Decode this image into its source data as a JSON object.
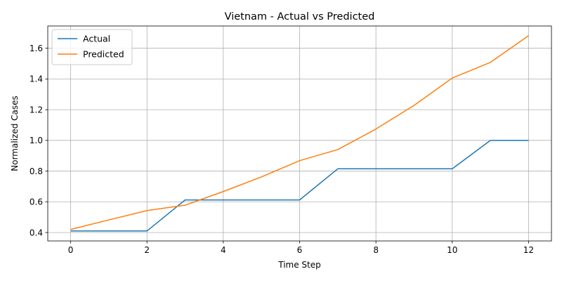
{
  "chart_data": {
    "type": "line",
    "title": "Vietnam - Actual vs Predicted",
    "xlabel": "Time Step",
    "ylabel": "Normalized Cases",
    "x": [
      0,
      1,
      2,
      3,
      4,
      5,
      6,
      7,
      8,
      9,
      10,
      11,
      12
    ],
    "xlim": [
      -0.6,
      12.6
    ],
    "ylim": [
      0.345,
      1.745
    ],
    "xticks": [
      0,
      2,
      4,
      6,
      8,
      10,
      12
    ],
    "yticks": [
      0.4,
      0.6,
      0.8,
      1.0,
      1.2,
      1.4,
      1.6
    ],
    "xtick_labels": [
      "0",
      "2",
      "4",
      "6",
      "8",
      "10",
      "12"
    ],
    "ytick_labels": [
      "0.4",
      "0.6",
      "0.8",
      "1.0",
      "1.2",
      "1.4",
      "1.6"
    ],
    "grid": true,
    "legend_position": "top-left",
    "series": [
      {
        "name": "Actual",
        "color": "#1f77b4",
        "values": [
          0.41,
          0.41,
          0.41,
          0.612,
          0.612,
          0.612,
          0.612,
          0.815,
          0.815,
          0.815,
          0.815,
          1.0,
          1.0
        ]
      },
      {
        "name": "Predicted",
        "color": "#ff7f0e",
        "values": [
          0.42,
          0.482,
          0.543,
          0.578,
          0.667,
          0.762,
          0.868,
          0.94,
          1.074,
          1.228,
          1.406,
          1.508,
          1.682
        ]
      }
    ]
  }
}
